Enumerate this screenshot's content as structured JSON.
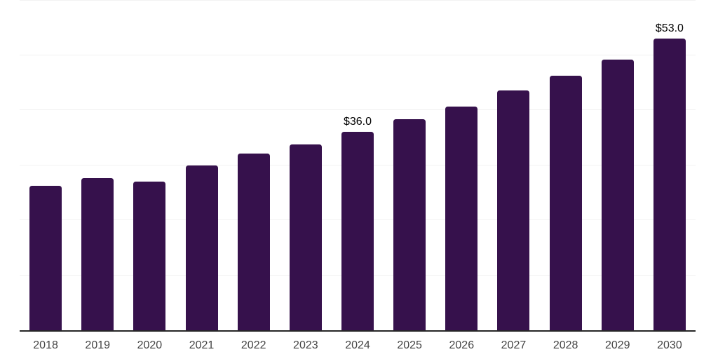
{
  "chart_data": {
    "type": "bar",
    "categories": [
      "2018",
      "2019",
      "2020",
      "2021",
      "2022",
      "2023",
      "2024",
      "2025",
      "2026",
      "2027",
      "2028",
      "2029",
      "2030"
    ],
    "values": [
      26.2,
      27.6,
      27.0,
      30.0,
      32.1,
      33.8,
      36.0,
      38.3,
      40.7,
      43.6,
      46.3,
      49.2,
      53.0
    ],
    "point_labels": [
      "",
      "",
      "",
      "",
      "",
      "",
      "$36.0",
      "",
      "",
      "",
      "",
      "",
      "$53.0"
    ],
    "xlabel": "",
    "ylabel": "",
    "ylim": [
      0,
      60
    ],
    "gridline_step": 10,
    "grid": "horizontal",
    "legend": "none",
    "y_axis_tick_labels_visible": false,
    "colors": {
      "bar": "#36114c",
      "gridline": "#f2f2f2",
      "axis_line": "#262626",
      "x_tick_label": "#444444",
      "data_label": "#000000",
      "background": "#ffffff"
    }
  }
}
